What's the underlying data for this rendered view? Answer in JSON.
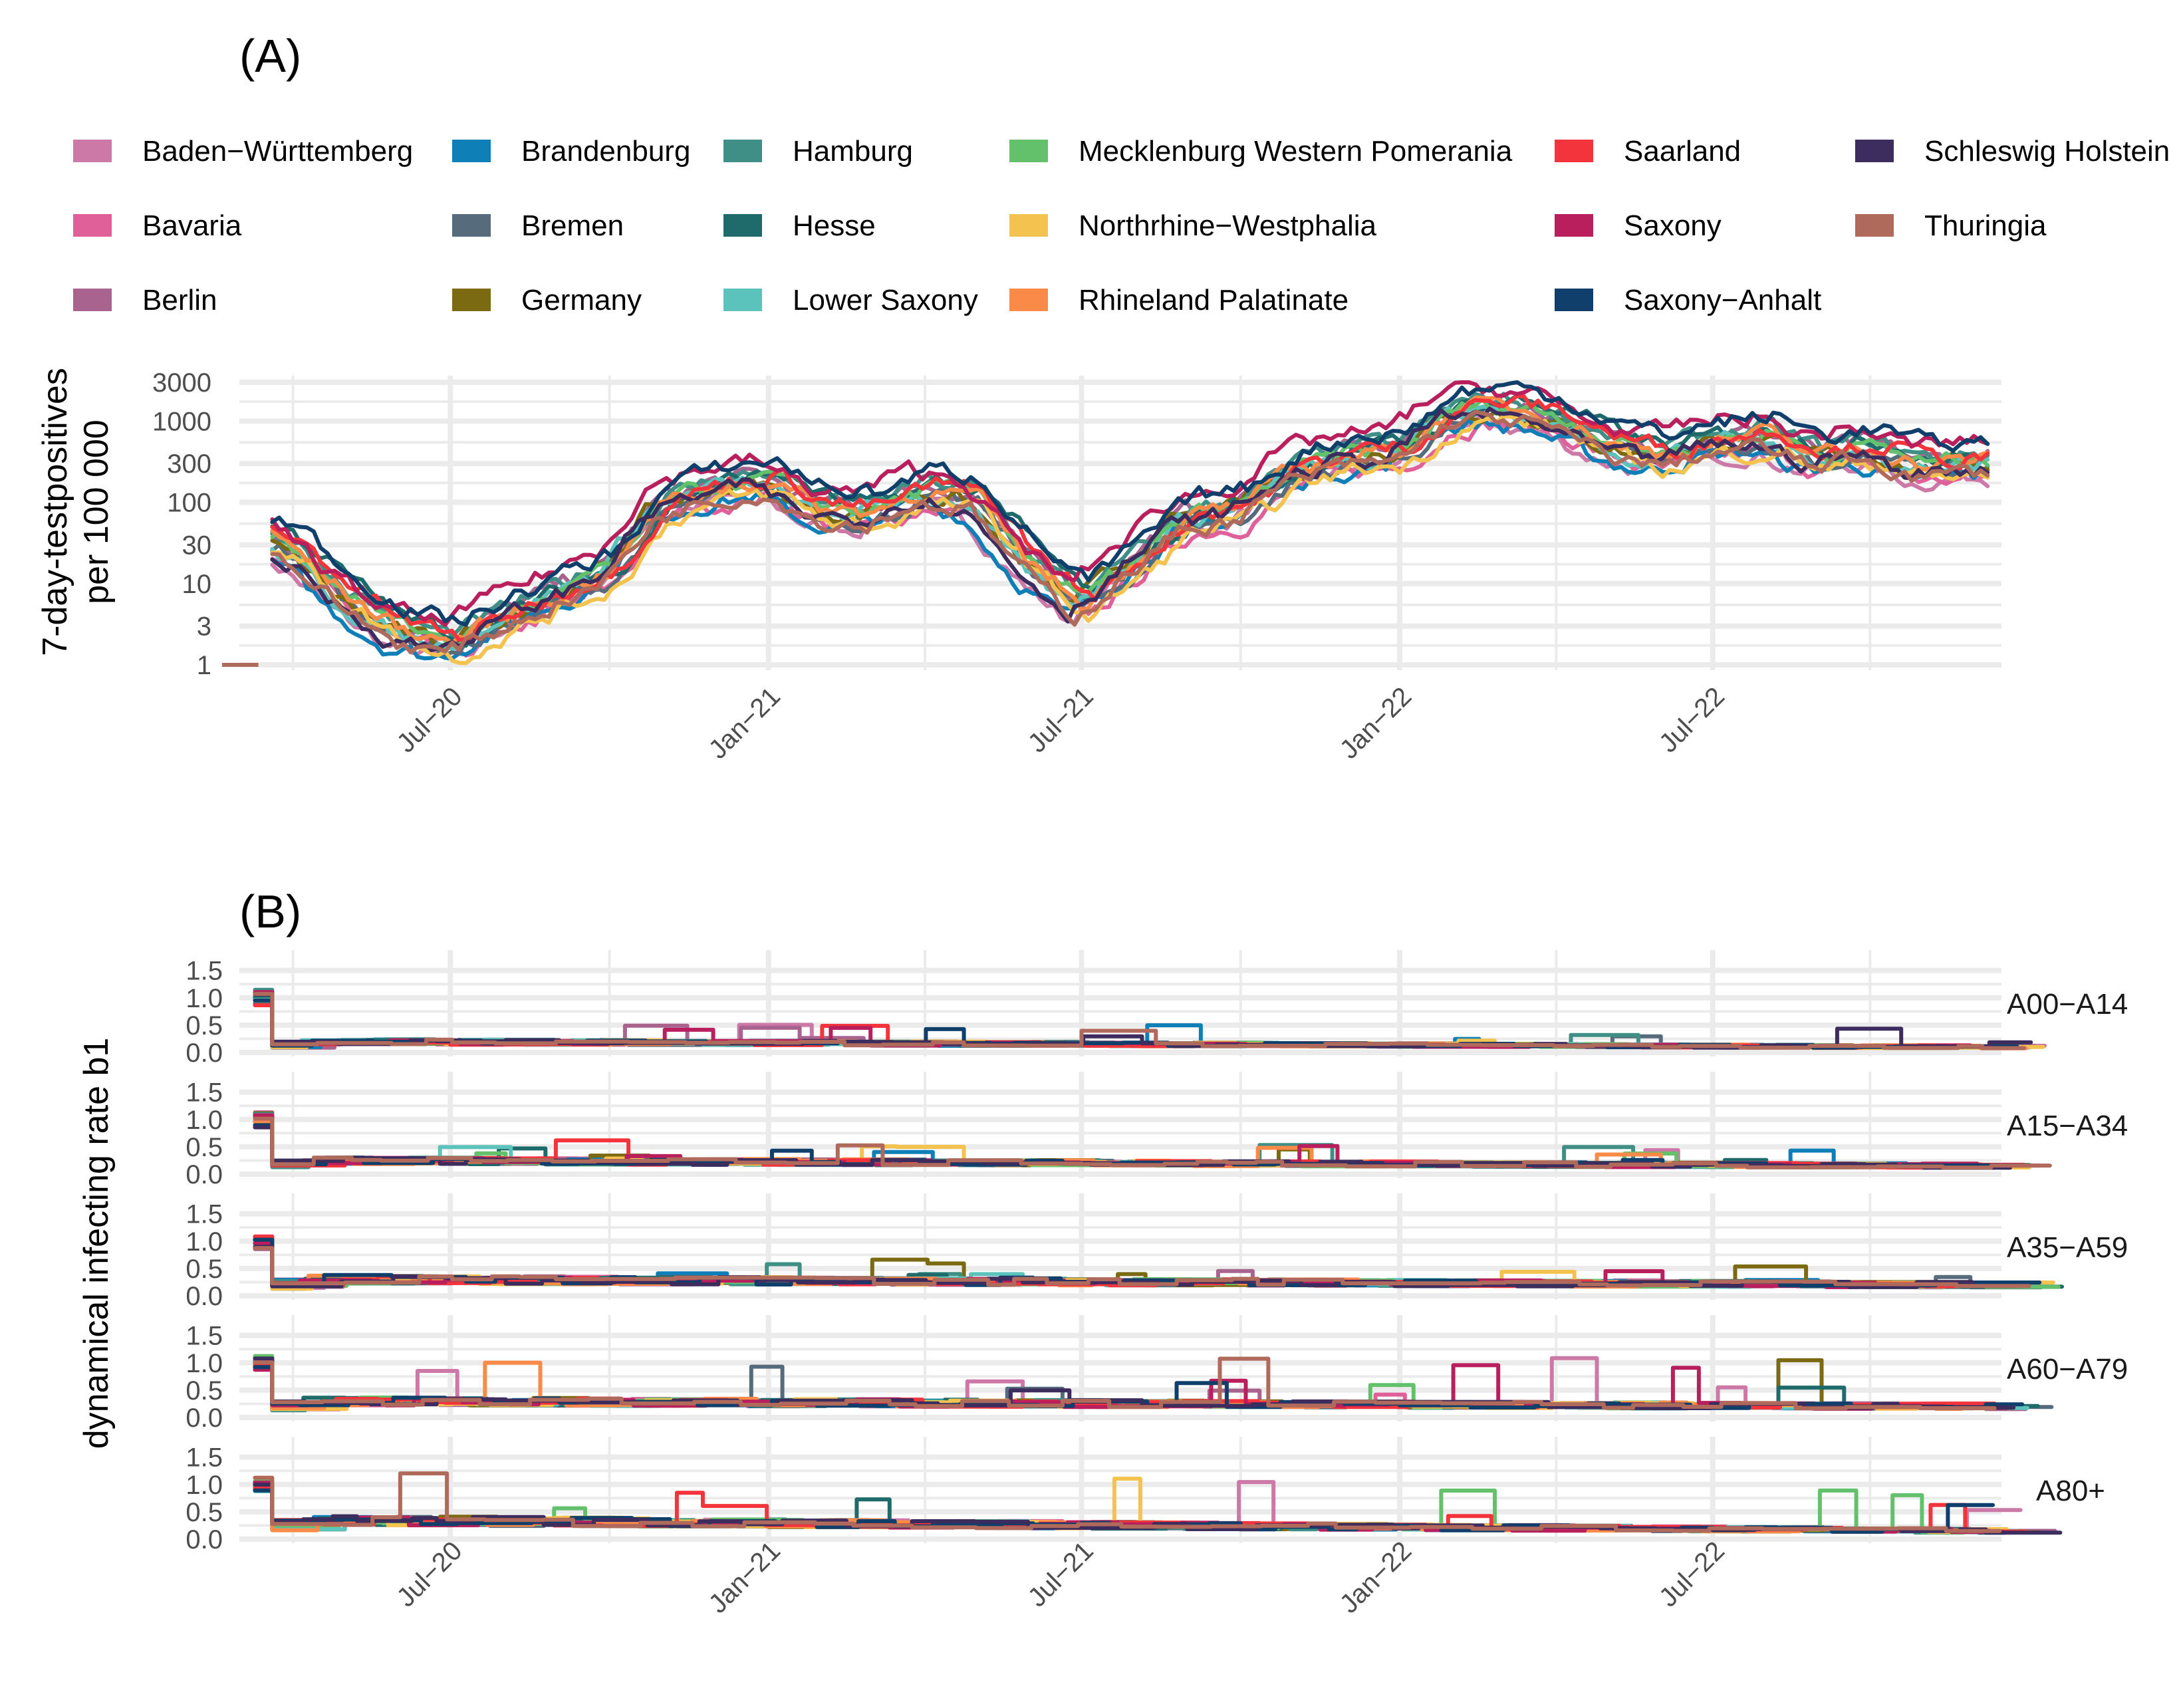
{
  "chart_data": [
    {
      "type": "line",
      "panel_label": "(A)",
      "ylabel": [
        "7-day-testpositives",
        "per 100 000"
      ],
      "yscale": "log",
      "yticks": [
        1,
        3,
        10,
        30,
        100,
        300,
        1000,
        3000
      ],
      "ytick_labels": [
        "1",
        "3",
        "10",
        "30",
        "100",
        "300",
        "1000",
        "3000"
      ],
      "ylim": [
        1,
        3000
      ],
      "xlim": [
        "2020-03-01",
        "2022-12-15"
      ],
      "xticks": [
        "2020-07-01",
        "2021-01-01",
        "2021-07-01",
        "2022-01-01",
        "2022-07-01"
      ],
      "xtick_labels": [
        "Jul−20",
        "Jan−21",
        "Jul−21",
        "Jan−22",
        "Jul−22"
      ],
      "legend_position": "top",
      "series": [
        {
          "name": "Baden−Württemberg",
          "color": "#cc79a7"
        },
        {
          "name": "Bavaria",
          "color": "#e0609a"
        },
        {
          "name": "Berlin",
          "color": "#a8648f"
        },
        {
          "name": "Brandenburg",
          "color": "#0f7fb8"
        },
        {
          "name": "Bremen",
          "color": "#566b7c"
        },
        {
          "name": "Germany",
          "color": "#7b6a12"
        },
        {
          "name": "Hamburg",
          "color": "#3f8f86"
        },
        {
          "name": "Hesse",
          "color": "#1f6a6a"
        },
        {
          "name": "Lower Saxony",
          "color": "#5cc3bc"
        },
        {
          "name": "Mecklenburg Western Pomerania",
          "color": "#62c16a"
        },
        {
          "name": "Northrhine−Westphalia",
          "color": "#f4c24e"
        },
        {
          "name": "Rhineland Palatinate",
          "color": "#f98a48"
        },
        {
          "name": "Saarland",
          "color": "#f4343c"
        },
        {
          "name": "Saxony",
          "color": "#b91f5c"
        },
        {
          "name": "Saxony−Anhalt",
          "color": "#0f3f6a"
        },
        {
          "name": "Schleswig Holstein",
          "color": "#3d2d5e"
        },
        {
          "name": "Thuringia",
          "color": "#b06a5c"
        }
      ],
      "trend_points": [
        [
          "2020-03-20",
          40
        ],
        [
          "2020-04-05",
          25
        ],
        [
          "2020-05-01",
          8
        ],
        [
          "2020-06-01",
          3
        ],
        [
          "2020-07-01",
          2
        ],
        [
          "2020-08-01",
          4
        ],
        [
          "2020-09-01",
          8
        ],
        [
          "2020-10-01",
          15
        ],
        [
          "2020-11-01",
          100
        ],
        [
          "2020-12-01",
          160
        ],
        [
          "2021-01-01",
          200
        ],
        [
          "2021-02-01",
          90
        ],
        [
          "2021-03-01",
          80
        ],
        [
          "2021-04-01",
          150
        ],
        [
          "2021-05-01",
          120
        ],
        [
          "2021-06-01",
          20
        ],
        [
          "2021-07-01",
          6
        ],
        [
          "2021-08-01",
          20
        ],
        [
          "2021-09-01",
          70
        ],
        [
          "2021-10-01",
          90
        ],
        [
          "2021-11-01",
          250
        ],
        [
          "2021-12-01",
          400
        ],
        [
          "2022-01-01",
          450
        ],
        [
          "2022-02-01",
          1400
        ],
        [
          "2022-03-01",
          1600
        ],
        [
          "2022-04-01",
          1200
        ],
        [
          "2022-05-01",
          600
        ],
        [
          "2022-06-01",
          400
        ],
        [
          "2022-07-01",
          600
        ],
        [
          "2022-08-01",
          700
        ],
        [
          "2022-09-01",
          400
        ],
        [
          "2022-10-01",
          500
        ],
        [
          "2022-11-01",
          300
        ],
        [
          "2022-12-10",
          350
        ]
      ]
    },
    {
      "type": "line",
      "panel_label": "(B)",
      "ylabel": "dynamical infecting rate b1",
      "yticks": [
        0.0,
        0.5,
        1.0,
        1.5
      ],
      "ytick_labels": [
        "0.0",
        "0.5",
        "1.0",
        "1.5"
      ],
      "ylim": [
        0,
        1.8
      ],
      "xlim": [
        "2020-03-01",
        "2022-12-15"
      ],
      "xticks": [
        "2020-07-01",
        "2021-01-01",
        "2021-07-01",
        "2022-01-01",
        "2022-07-01"
      ],
      "xtick_labels": [
        "Jul−20",
        "Jan−21",
        "Jul−21",
        "Jan−22",
        "Jul−22"
      ],
      "facets": [
        {
          "label": "A00−A14",
          "start": 1.0,
          "level": 0.2,
          "end": 0.1
        },
        {
          "label": "A15−A34",
          "start": 1.0,
          "level": 0.25,
          "end": 0.15
        },
        {
          "label": "A35−A59",
          "start": 1.0,
          "level": 0.3,
          "end": 0.2
        },
        {
          "label": "A60−A79",
          "start": 1.0,
          "level": 0.3,
          "end": 0.2
        },
        {
          "label": "A80+",
          "start": 1.0,
          "level": 0.35,
          "end": 0.15
        }
      ]
    }
  ]
}
